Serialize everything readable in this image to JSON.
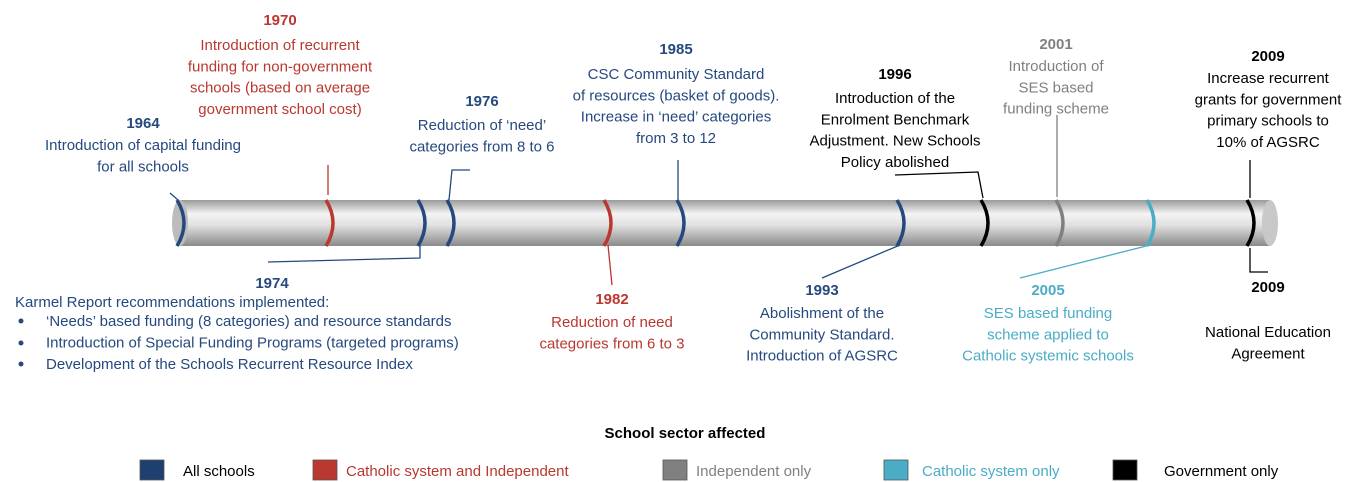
{
  "events": [
    {
      "year": "1964",
      "color": "#25497f",
      "lines": [
        "Introduction of capital funding",
        "for all schools"
      ]
    },
    {
      "year": "1970",
      "color": "#b9382f",
      "lines": [
        "Introduction of recurrent",
        "funding for non-government",
        "schools (based on average",
        "government school cost)"
      ]
    },
    {
      "year": "1976",
      "color": "#25497f",
      "lines": [
        "Reduction of ‘need’",
        "categories from 8 to 6"
      ]
    },
    {
      "year": "1985",
      "color": "#25497f",
      "lines": [
        "CSC Community Standard",
        "of resources (basket of goods).",
        "Increase in ‘need’ categories",
        "from 3 to 12"
      ]
    },
    {
      "year": "1996",
      "color": "#000000",
      "lines": [
        "Introduction of the",
        "Enrolment Benchmark",
        "Adjustment. New Schools",
        "Policy abolished"
      ]
    },
    {
      "year": "2001",
      "color": "#808080",
      "lines": [
        "Introduction of",
        "SES based",
        "funding scheme"
      ]
    },
    {
      "year": "2009",
      "color": "#000000",
      "lines": [
        "Increase recurrent",
        "grants for government",
        "primary schools to",
        "10% of AGSRC"
      ]
    },
    {
      "year": "1974",
      "color": "#25497f",
      "lines": [
        "Karmel Report recommendations implemented:"
      ],
      "bullets": [
        "‘Needs’ based funding (8 categories) and resource standards",
        "Introduction of Special Funding Programs (targeted programs)",
        "Development of the Schools Recurrent Resource Index"
      ]
    },
    {
      "year": "1982",
      "color": "#b9382f",
      "lines": [
        "Reduction of need",
        "categories from 6 to 3"
      ]
    },
    {
      "year": "1993",
      "color": "#25497f",
      "lines": [
        "Abolishment of the",
        "Community Standard.",
        "Introduction of AGSRC"
      ]
    },
    {
      "year": "2005",
      "color": "#4bacc6",
      "lines": [
        "SES based funding",
        "scheme applied to",
        "Catholic systemic schools"
      ]
    },
    {
      "year": "2009",
      "color": "#000000",
      "lines": [
        "National Education",
        "Agreement"
      ]
    }
  ],
  "legend": {
    "title": "School sector affected",
    "items": [
      {
        "label": "All schools",
        "color": "#1f3f6e"
      },
      {
        "label": "Catholic system and Independent",
        "color": "#b9382f"
      },
      {
        "label": "Independent only",
        "color": "#808080"
      },
      {
        "label": "Catholic system only",
        "color": "#4bacc6"
      },
      {
        "label": "Government only",
        "color": "#000000"
      }
    ]
  }
}
